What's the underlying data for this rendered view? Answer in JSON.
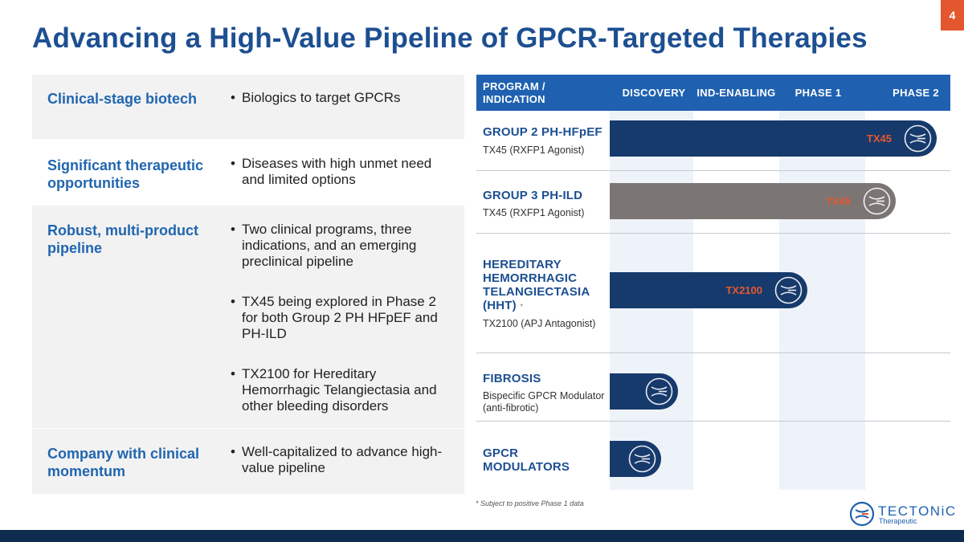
{
  "page_number": "4",
  "title": "Advancing a High-Value Pipeline of GPCR-Targeted Therapies",
  "left_table": [
    {
      "label": "Clinical-stage biotech",
      "bullets": [
        "Biologics to target GPCRs"
      ]
    },
    {
      "label": "Significant therapeutic opportunities",
      "bullets": [
        "Diseases with high unmet need and limited options"
      ]
    },
    {
      "label": "Robust, multi-product pipeline",
      "bullets": [
        "Two clinical programs, three indications, and an emerging preclinical pipeline",
        "TX45 being explored in Phase 2 for both Group 2 PH HFpEF and PH-ILD",
        "TX2100 for Hereditary Hemorrhagic Telangiectasia and other bleeding disorders"
      ]
    },
    {
      "label": "Company with clinical momentum",
      "bullets": [
        "Well-capitalized to advance high-value pipeline"
      ]
    }
  ],
  "pipeline": {
    "headers": [
      "PROGRAM / INDICATION",
      "DISCOVERY",
      "IND-ENABLING",
      "PHASE 1",
      "PHASE 2"
    ],
    "programs": [
      {
        "name": "GROUP 2 PH-HFpEF",
        "subtitle": "TX45 (RXFP1 Agonist)",
        "bar_label": "TX45",
        "bar_color": "#173a6c",
        "stage": "Phase 2",
        "progress": 0.96
      },
      {
        "name": "GROUP 3 PH-ILD",
        "subtitle": "TX45 (RXFP1 Agonist)",
        "bar_label": "TX45",
        "bar_color": "#7b7674",
        "stage": "Phase 2",
        "progress": 0.84
      },
      {
        "name": "HEREDITARY HEMORRHAGIC TELANGIECTASIA (HHT)",
        "asterisk": "*",
        "subtitle": "TX2100 (APJ Antagonist)",
        "bar_label": "TX2100",
        "bar_color": "#173a6c",
        "stage": "Phase 1",
        "progress": 0.58
      },
      {
        "name": "FIBROSIS",
        "subtitle": "Bispecific GPCR Modulator (anti-fibrotic)",
        "bar_label": "",
        "bar_color": "#173a6c",
        "stage": "Discovery",
        "progress": 0.2
      },
      {
        "name": "GPCR MODULATORS",
        "subtitle": "",
        "bar_label": "",
        "bar_color": "#173a6c",
        "stage": "Discovery",
        "progress": 0.15
      }
    ]
  },
  "footnote": "* Subject to positive Phase 1 data",
  "logo": {
    "name": "TECTONiC",
    "sub": "Therapeutic",
    "icon": "tectonic-logo-icon"
  }
}
